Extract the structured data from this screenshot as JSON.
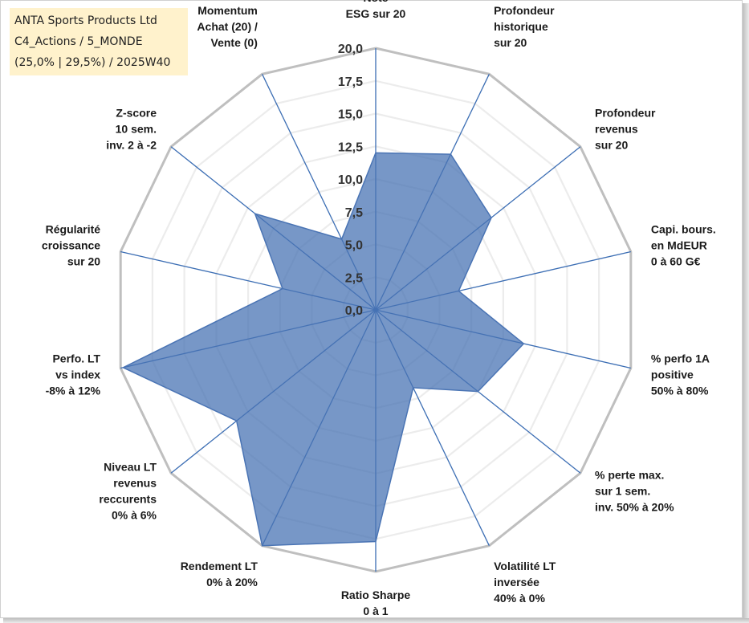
{
  "info": {
    "company": "ANTA Sports Products Ltd",
    "portfolio": "C4_Actions / 5_MONDE",
    "weights": "(25,0% | 29,5%) / 2025W40"
  },
  "colors": {
    "area": "#4a74b4",
    "spoke": "#3c6eb4",
    "grid_inner": "#ececec",
    "grid_outer": "#bfbfbf"
  },
  "chart_data": {
    "type": "radar",
    "title": "",
    "scale": {
      "min": 0,
      "max": 20,
      "step": 2.5
    },
    "tick_labels": [
      "0,0",
      "2,5",
      "5,0",
      "7,5",
      "10,0",
      "12,5",
      "15,0",
      "17,5",
      "20,0"
    ],
    "axes": [
      {
        "label": [
          "Note",
          "ESG sur 20"
        ],
        "value": 12.0
      },
      {
        "label": [
          "Profondeur",
          "historique",
          "sur 20"
        ],
        "value": 13.2
      },
      {
        "label": [
          "Profondeur",
          "revenus",
          "sur 20"
        ],
        "value": 11.3
      },
      {
        "label": [
          "Capi. bours.",
          "en MdEUR",
          "0 à 60 G€"
        ],
        "value": 6.5
      },
      {
        "label": [
          "% perfo 1A",
          "positive",
          "50% à 80%"
        ],
        "value": 11.6
      },
      {
        "label": [
          "% perte max.",
          "sur 1 sem.",
          "inv. 50% à 20%"
        ],
        "value": 10.0
      },
      {
        "label": [
          "Volatilité LT",
          "inversée",
          "40% à 0%"
        ],
        "value": 6.6
      },
      {
        "label": [
          "Ratio Sharpe",
          "0 à 1"
        ],
        "value": 17.7
      },
      {
        "label": [
          "Rendement LT",
          "0% à 20%"
        ],
        "value": 20.0
      },
      {
        "label": [
          "Niveau LT",
          "revenus",
          "reccurents",
          "0% à 6%"
        ],
        "value": 13.6
      },
      {
        "label": [
          "Perfo. LT",
          "vs index",
          "-8% à 12%"
        ],
        "value": 19.8
      },
      {
        "label": [
          "Régularité",
          "croissance",
          "sur 20"
        ],
        "value": 7.3
      },
      {
        "label": [
          "Z-score",
          "10 sem.",
          "inv. 2 à -2"
        ],
        "value": 11.8
      },
      {
        "label": [
          "Momentum",
          "Achat (20) /",
          "Vente (0)"
        ],
        "value": 6.0
      }
    ]
  }
}
